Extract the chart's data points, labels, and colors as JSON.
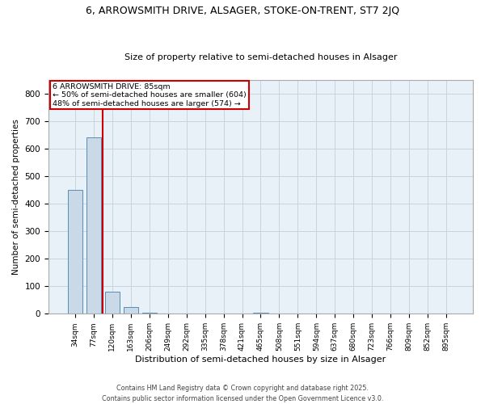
{
  "title_line1": "6, ARROWSMITH DRIVE, ALSAGER, STOKE-ON-TRENT, ST7 2JQ",
  "title_line2": "Size of property relative to semi-detached houses in Alsager",
  "xlabel": "Distribution of semi-detached houses by size in Alsager",
  "ylabel": "Number of semi-detached properties",
  "categories": [
    "34sqm",
    "77sqm",
    "120sqm",
    "163sqm",
    "206sqm",
    "249sqm",
    "292sqm",
    "335sqm",
    "378sqm",
    "421sqm",
    "465sqm",
    "508sqm",
    "551sqm",
    "594sqm",
    "637sqm",
    "680sqm",
    "723sqm",
    "766sqm",
    "809sqm",
    "852sqm",
    "895sqm"
  ],
  "values": [
    450,
    640,
    80,
    25,
    5,
    0,
    0,
    0,
    0,
    0,
    5,
    0,
    0,
    0,
    0,
    0,
    0,
    0,
    0,
    0,
    0
  ],
  "bar_color": "#c9d9e8",
  "bar_edge_color": "#5a8db5",
  "red_line_color": "#cc0000",
  "annotation_box_edge_color": "#cc0000",
  "property_label": "6 ARROWSMITH DRIVE: 85sqm",
  "smaller_pct": "50%",
  "smaller_count": 604,
  "larger_pct": "48%",
  "larger_count": 574,
  "ylim": [
    0,
    850
  ],
  "yticks": [
    0,
    100,
    200,
    300,
    400,
    500,
    600,
    700,
    800
  ],
  "grid_color": "#c8d4e0",
  "bg_color": "#e8f0f8",
  "footer_line1": "Contains HM Land Registry data © Crown copyright and database right 2025.",
  "footer_line2": "Contains public sector information licensed under the Open Government Licence v3.0."
}
